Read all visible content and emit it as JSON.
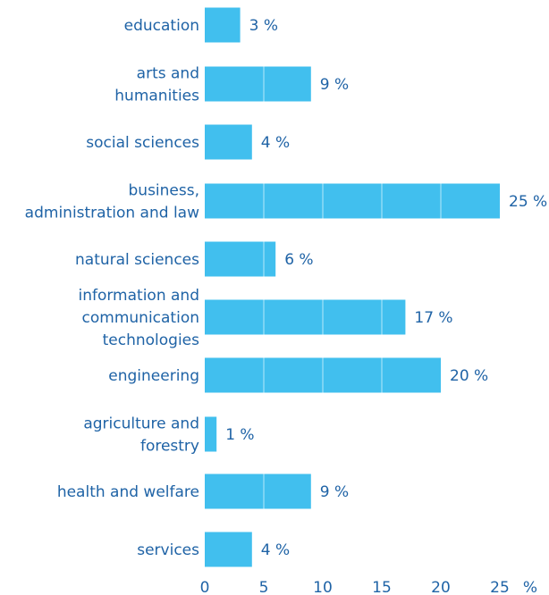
{
  "chart_data": {
    "type": "bar",
    "orientation": "horizontal",
    "categories": [
      [
        "education"
      ],
      [
        "arts and",
        "humanities"
      ],
      [
        "social sciences"
      ],
      [
        "business,",
        "administration and law"
      ],
      [
        "natural sciences"
      ],
      [
        "information and",
        "communication",
        "technologies"
      ],
      [
        "engineering"
      ],
      [
        "agriculture and",
        "forestry"
      ],
      [
        "health and welfare"
      ],
      [
        "services"
      ]
    ],
    "values": [
      3,
      9,
      4,
      25,
      6,
      17,
      20,
      1,
      9,
      4
    ],
    "value_labels": [
      "3 %",
      "9 %",
      "4 %",
      "25 %",
      "6 %",
      "17 %",
      "20 %",
      "1 %",
      "9 %",
      "4 %"
    ],
    "xticks": [
      "0",
      "5",
      "10",
      "15",
      "20",
      "25"
    ],
    "xtick_values": [
      0,
      5,
      10,
      15,
      20,
      25
    ],
    "xunit": "%",
    "xlim": [
      0,
      25
    ],
    "grid": true,
    "colors": {
      "bar": "#41bfee",
      "text": "#1f63a6",
      "gridline": "#8fdaf6"
    }
  }
}
